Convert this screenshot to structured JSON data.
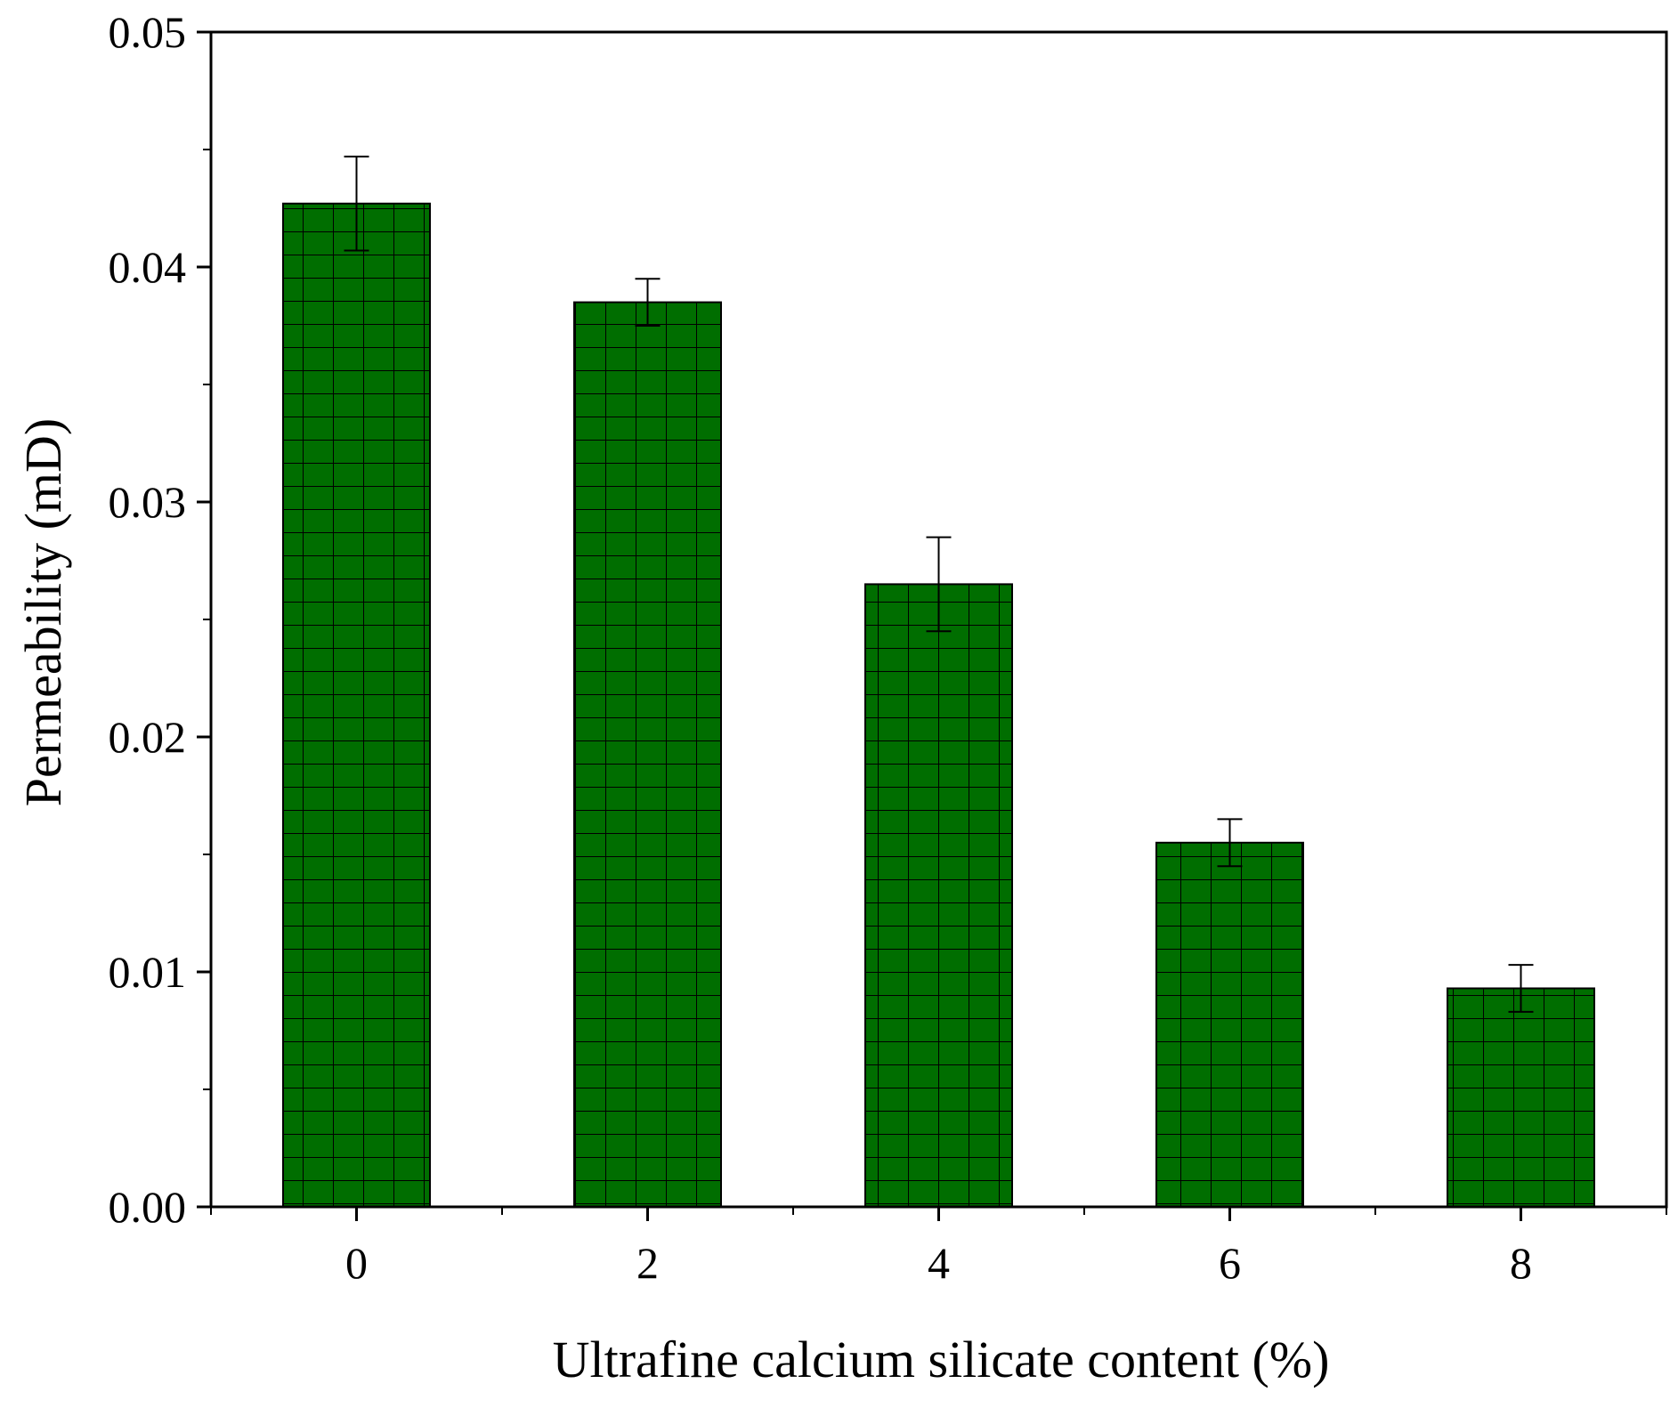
{
  "chart_data": {
    "type": "bar",
    "categories": [
      "0",
      "2",
      "4",
      "6",
      "8"
    ],
    "values": [
      0.0427,
      0.0385,
      0.0265,
      0.0155,
      0.0093
    ],
    "errors": [
      0.002,
      0.001,
      0.002,
      0.001,
      0.001
    ],
    "xlabel": "Ultrafine calcium silicate content (%)",
    "ylabel": "Permeability (mD)",
    "ylim": [
      0,
      0.05
    ],
    "yticks": [
      "0.00",
      "0.01",
      "0.02",
      "0.03",
      "0.04",
      "0.05"
    ],
    "grid": false,
    "bar_color": "#006e00",
    "bar_pattern": "crosshatch-grid"
  }
}
